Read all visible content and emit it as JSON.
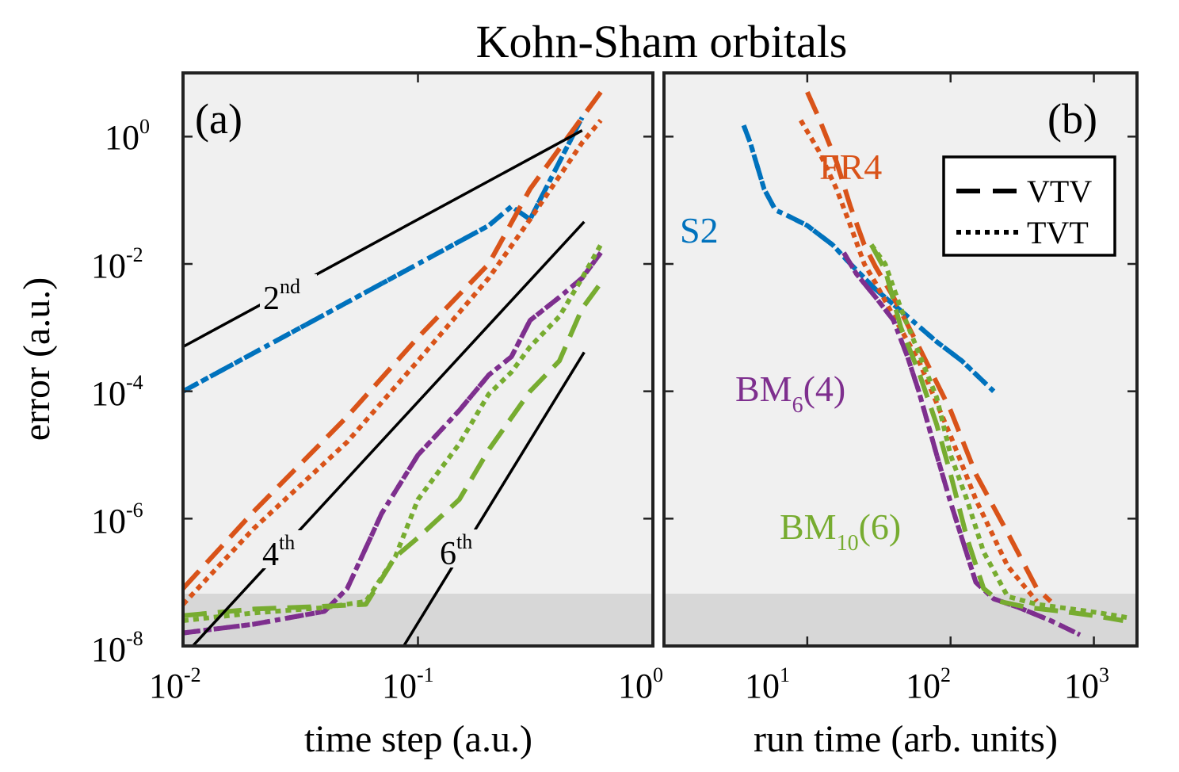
{
  "title": "Kohn-Sham orbitals",
  "colors": {
    "S2": "#0072BD",
    "FR4": "#D95319",
    "BM6": "#7E2F8E",
    "BM10": "#77AC30",
    "reference": "#000000",
    "noise_band": "#d7d7d7",
    "plot_background": "#f0f0f0"
  },
  "chart_data": [
    {
      "panel": "(a)",
      "type": "line",
      "xscale": "log",
      "yscale": "log",
      "xlabel": "time step (a.u.)",
      "ylabel": "error (a.u.)",
      "xlim": [
        0.01,
        1
      ],
      "ylim": [
        1e-08,
        10
      ],
      "x_tick_labels": [
        {
          "base": "10",
          "exp": "-2"
        },
        {
          "base": "10",
          "exp": "-1"
        },
        {
          "base": "10",
          "exp": "0"
        }
      ],
      "y_tick_labels": [
        {
          "base": "10",
          "exp": "0"
        },
        {
          "base": "10",
          "exp": "-2"
        },
        {
          "base": "10",
          "exp": "-4"
        },
        {
          "base": "10",
          "exp": "-6"
        },
        {
          "base": "10",
          "exp": "-8"
        }
      ],
      "noise_floor": [
        1e-08,
        5.5e-08
      ],
      "series": [
        {
          "name": "S2",
          "splitting": "VTV",
          "style": "dashdot",
          "x": [
            0.01,
            0.02,
            0.05,
            0.1,
            0.2,
            0.25,
            0.3,
            0.5
          ],
          "y": [
            0.0001,
            0.0004,
            0.0025,
            0.01,
            0.04,
            0.08,
            0.05,
            2.0
          ]
        },
        {
          "name": "S2",
          "splitting": "TVT",
          "style": "dotted",
          "x": [
            0.01,
            0.02,
            0.05,
            0.1,
            0.2,
            0.25,
            0.3,
            0.5
          ],
          "y": [
            0.0001,
            0.0004,
            0.0025,
            0.01,
            0.04,
            0.08,
            0.05,
            2.0
          ]
        },
        {
          "name": "FR4",
          "splitting": "VTV",
          "style": "dashed",
          "x": [
            0.01,
            0.02,
            0.05,
            0.1,
            0.2,
            0.3,
            0.5,
            0.6
          ],
          "y": [
            8e-08,
            1.3e-06,
            4e-05,
            0.0007,
            0.01,
            0.15,
            2.0,
            5.0
          ]
        },
        {
          "name": "FR4",
          "splitting": "TVT",
          "style": "dotted",
          "x": [
            0.01,
            0.02,
            0.05,
            0.1,
            0.2,
            0.3,
            0.5,
            0.6
          ],
          "y": [
            4.5e-08,
            7e-07,
            1.6e-05,
            0.0003,
            0.006,
            0.05,
            0.8,
            1.8
          ]
        },
        {
          "name": "BM6(4)",
          "splitting": "VTV",
          "style": "dashdot",
          "x": [
            0.01,
            0.02,
            0.04,
            0.05,
            0.07,
            0.1,
            0.15,
            0.2,
            0.25,
            0.3,
            0.4,
            0.5,
            0.6
          ],
          "y": [
            1.6e-08,
            2.2e-08,
            3.5e-08,
            8e-08,
            1.2e-06,
            1e-05,
            5e-05,
            0.00018,
            0.00035,
            0.0013,
            0.003,
            0.006,
            0.015
          ]
        },
        {
          "name": "BM6(4)",
          "splitting": "TVT",
          "style": "dotted",
          "x": [
            0.01,
            0.02,
            0.04,
            0.05,
            0.07,
            0.1,
            0.15,
            0.2,
            0.25,
            0.3,
            0.4,
            0.5,
            0.6
          ],
          "y": [
            1.6e-08,
            2.2e-08,
            3.5e-08,
            8e-08,
            1.2e-06,
            1e-05,
            5e-05,
            0.00018,
            0.00035,
            0.0013,
            0.003,
            0.006,
            0.015
          ]
        },
        {
          "name": "BM10(6)",
          "splitting": "VTV",
          "style": "dashed",
          "x": [
            0.01,
            0.02,
            0.04,
            0.06,
            0.08,
            0.1,
            0.15,
            0.2,
            0.3,
            0.4,
            0.5,
            0.6
          ],
          "y": [
            3e-08,
            3.8e-08,
            4.2e-08,
            4.5e-08,
            2.5e-07,
            5e-07,
            2e-06,
            1.2e-05,
            0.0001,
            0.0003,
            0.002,
            0.005
          ]
        },
        {
          "name": "BM10(6)",
          "splitting": "TVT",
          "style": "dotted",
          "x": [
            0.01,
            0.02,
            0.04,
            0.06,
            0.08,
            0.1,
            0.15,
            0.2,
            0.25,
            0.3,
            0.4,
            0.5,
            0.6
          ],
          "y": [
            2.5e-08,
            3.3e-08,
            4e-08,
            5e-08,
            2.5e-07,
            2e-06,
            1.5e-05,
            9e-05,
            0.0002,
            0.0005,
            0.0015,
            0.006,
            0.02
          ]
        }
      ],
      "reference_slopes": [
        {
          "label": "2",
          "sup": "nd",
          "order": 2,
          "x": [
            0.01,
            0.5
          ],
          "y": [
            0.0005,
            1.25
          ]
        },
        {
          "label": "4",
          "sup": "th",
          "order": 4,
          "x": [
            0.011,
            0.51
          ],
          "y": [
            1e-08,
            0.046
          ]
        },
        {
          "label": "6",
          "sup": "th",
          "order": 6,
          "x": [
            0.087,
            0.51
          ],
          "y": [
            1e-08,
            0.00041
          ]
        }
      ]
    },
    {
      "panel": "(b)",
      "type": "line",
      "xscale": "log",
      "yscale": "log",
      "xlabel": "run time (arb. units)",
      "ylim": [
        1e-08,
        10
      ],
      "xlim": [
        1,
        2000
      ],
      "x_tick_labels": [
        {
          "base": "10",
          "exp": "1"
        },
        {
          "base": "10",
          "exp": "2"
        },
        {
          "base": "10",
          "exp": "3"
        }
      ],
      "legend": {
        "position": "top-right",
        "entries": [
          {
            "label": "VTV",
            "style": "dashed"
          },
          {
            "label": "TVT",
            "style": "dotted"
          }
        ]
      },
      "series_labels": [
        {
          "series": "S2",
          "text": "S2",
          "sub": ""
        },
        {
          "series": "FR4",
          "text": "FR4",
          "sub": ""
        },
        {
          "series": "BM6(4)",
          "text_pre": "BM",
          "sub": "6",
          "text_post": "(4)"
        },
        {
          "series": "BM10(6)",
          "text_pre": "BM",
          "sub": "10",
          "text_post": "(6)"
        }
      ],
      "series": [
        {
          "name": "S2",
          "splitting": "VTV",
          "style": "dashdot",
          "x": [
            3.6,
            4,
            5,
            6,
            7,
            10,
            15,
            20,
            30,
            50,
            80,
            120,
            200
          ],
          "y": [
            1.5,
            0.8,
            0.15,
            0.07,
            0.06,
            0.04,
            0.02,
            0.01,
            0.004,
            0.0015,
            0.0006,
            0.0003,
            0.0001
          ]
        },
        {
          "name": "S2",
          "splitting": "TVT",
          "style": "dotted",
          "x": [
            3.6,
            4,
            5,
            6,
            7,
            10,
            15,
            20,
            30,
            50,
            80,
            120,
            200
          ],
          "y": [
            1.5,
            0.8,
            0.15,
            0.07,
            0.06,
            0.04,
            0.02,
            0.01,
            0.004,
            0.0015,
            0.0006,
            0.0003,
            0.0001
          ]
        },
        {
          "name": "FR4",
          "splitting": "VTV",
          "style": "dashed",
          "x": [
            10,
            12,
            16,
            20,
            25,
            30,
            40,
            60,
            100,
            150,
            250,
            400,
            500
          ],
          "y": [
            5,
            2,
            0.4,
            0.08,
            0.02,
            0.009,
            0.003,
            0.0005,
            5e-05,
            5e-06,
            6e-07,
            8e-08,
            5e-08
          ]
        },
        {
          "name": "FR4",
          "splitting": "TVT",
          "style": "dotted",
          "x": [
            9,
            12,
            16,
            20,
            25,
            30,
            40,
            60,
            100,
            150,
            250,
            400
          ],
          "y": [
            1.8,
            0.6,
            0.15,
            0.04,
            0.01,
            0.005,
            0.0015,
            0.0003,
            2e-05,
            2e-06,
            1.8e-07,
            5e-08
          ]
        },
        {
          "name": "BM6(4)",
          "splitting": "VTV",
          "style": "dashdot",
          "x": [
            18,
            22,
            30,
            40,
            50,
            60,
            80,
            100,
            150,
            200,
            300,
            500,
            800
          ],
          "y": [
            0.015,
            0.007,
            0.003,
            0.0013,
            0.00035,
            0.0001,
            1e-05,
            1.8e-06,
            1e-07,
            5.5e-08,
            4e-08,
            2.5e-08,
            1.5e-08
          ]
        },
        {
          "name": "BM6(4)",
          "splitting": "TVT",
          "style": "dotted",
          "x": [
            18,
            22,
            30,
            40,
            50,
            60,
            80,
            100,
            150,
            200,
            300,
            500,
            800
          ],
          "y": [
            0.015,
            0.007,
            0.003,
            0.0013,
            0.00035,
            0.0001,
            1e-05,
            1.8e-06,
            1e-07,
            5.5e-08,
            4e-08,
            2.5e-08,
            1.5e-08
          ]
        },
        {
          "name": "BM10(6)",
          "splitting": "VTV",
          "style": "dashed",
          "x": [
            28,
            35,
            45,
            60,
            80,
            100,
            130,
            170,
            220,
            350,
            600,
            1000,
            1600
          ],
          "y": [
            0.02,
            0.008,
            0.001,
            0.0002,
            3e-05,
            5e-06,
            5e-07,
            8e-08,
            5e-08,
            4e-08,
            3.5e-08,
            3e-08,
            2.5e-08
          ]
        },
        {
          "name": "BM10(6)",
          "splitting": "TVT",
          "style": "dotted",
          "x": [
            28,
            35,
            45,
            60,
            80,
            100,
            130,
            170,
            250,
            400,
            700,
            1100,
            1700
          ],
          "y": [
            0.02,
            0.01,
            0.002,
            0.0004,
            8e-05,
            1e-05,
            2e-06,
            3e-07,
            6e-08,
            4.5e-08,
            3.8e-08,
            3.3e-08,
            2.8e-08
          ]
        }
      ]
    }
  ]
}
